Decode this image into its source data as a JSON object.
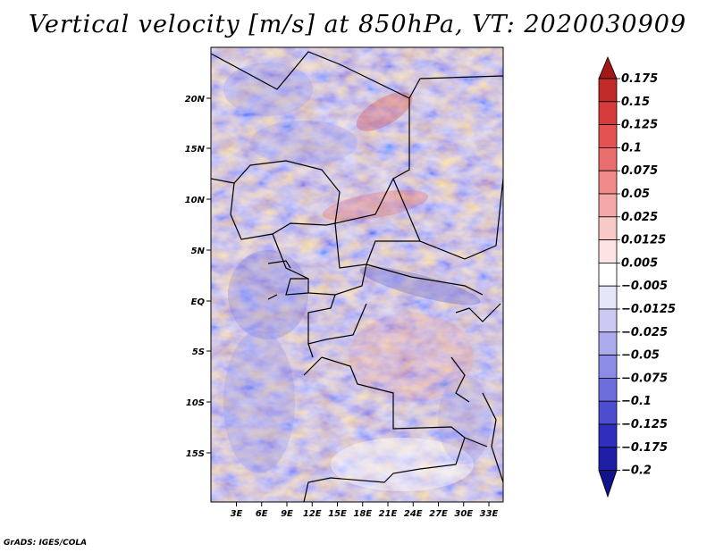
{
  "title": "Vertical velocity [m/s] at 850hPa, VT: 2020030909",
  "credit": "GrADS: IGES/COLA",
  "map": {
    "lat_labels": [
      "20N",
      "15N",
      "10N",
      "5N",
      "EQ",
      "5S",
      "10S",
      "15S"
    ],
    "lon_labels": [
      "3E",
      "6E",
      "9E",
      "12E",
      "15E",
      "18E",
      "21E",
      "24E",
      "27E",
      "30E",
      "33E"
    ]
  },
  "colorbar": {
    "labels": [
      "0.175",
      "0.15",
      "0.125",
      "0.1",
      "0.075",
      "0.05",
      "0.025",
      "0.0125",
      "0.005",
      "-0.005",
      "-0.0125",
      "-0.025",
      "-0.05",
      "-0.075",
      "-0.1",
      "-0.125",
      "-0.175",
      "-0.2"
    ],
    "colors": [
      "#a01818",
      "#c22a2a",
      "#d63c3c",
      "#e45252",
      "#ea6e6e",
      "#f08a8a",
      "#f5a8a8",
      "#f9c8c8",
      "#fce4e4",
      "#ffffff",
      "#e6e6f9",
      "#cccaf4",
      "#ababee",
      "#8c8ce6",
      "#6d6ddc",
      "#4d4dd0",
      "#2f2fbe",
      "#1e1ea6",
      "#12128a"
    ]
  }
}
